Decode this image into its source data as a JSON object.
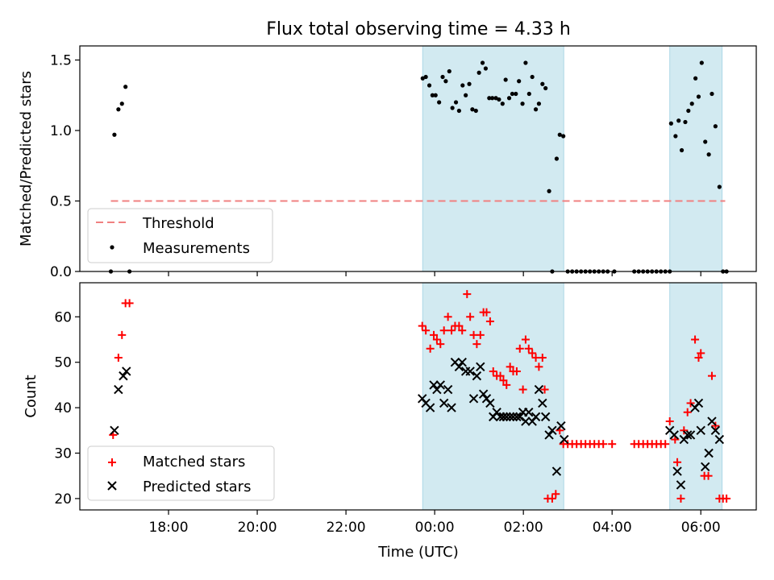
{
  "title": "Flux total observing time = 4.33 h",
  "colors": {
    "threshold": "#f08080",
    "measurement": "#000000",
    "matched": "#ff0000",
    "predicted": "#000000",
    "shade": "#add8e6"
  },
  "chart_data": [
    {
      "type": "scatter",
      "title": "Flux total observing time = 4.33 h",
      "xlabel": "",
      "ylabel": "Matched/Predicted stars",
      "xlim_hours": [
        16.0,
        31.25
      ],
      "ylim": [
        0,
        1.6
      ],
      "yticks": [
        0.0,
        0.5,
        1.0,
        1.5
      ],
      "ytick_labels": [
        "0.0",
        "0.5",
        "1.0",
        "1.5"
      ],
      "xticks_hours": [
        18,
        20,
        22,
        24,
        26,
        28,
        30
      ],
      "shaded_intervals_hours": [
        [
          23.73,
          26.91
        ],
        [
          29.3,
          30.48
        ]
      ],
      "legend_position": "lower-left",
      "legend": [
        "Threshold",
        "Measurements"
      ],
      "threshold": {
        "name": "Threshold",
        "value": 0.5,
        "x_range_hours": [
          16.7,
          30.55
        ],
        "style": "dashed"
      },
      "series": [
        {
          "name": "Measurements",
          "points": [
            [
              16.7,
              0.0
            ],
            [
              16.78,
              0.97
            ],
            [
              16.87,
              1.15
            ],
            [
              16.95,
              1.19
            ],
            [
              17.03,
              1.31
            ],
            [
              17.12,
              0.0
            ],
            [
              23.73,
              1.37
            ],
            [
              23.8,
              1.38
            ],
            [
              23.88,
              1.32
            ],
            [
              23.95,
              1.25
            ],
            [
              24.02,
              1.25
            ],
            [
              24.1,
              1.2
            ],
            [
              24.18,
              1.38
            ],
            [
              24.25,
              1.35
            ],
            [
              24.33,
              1.42
            ],
            [
              24.4,
              1.16
            ],
            [
              24.48,
              1.2
            ],
            [
              24.55,
              1.14
            ],
            [
              24.63,
              1.32
            ],
            [
              24.7,
              1.25
            ],
            [
              24.78,
              1.33
            ],
            [
              24.85,
              1.15
            ],
            [
              24.93,
              1.14
            ],
            [
              25.0,
              1.41
            ],
            [
              25.08,
              1.48
            ],
            [
              25.15,
              1.44
            ],
            [
              25.23,
              1.23
            ],
            [
              25.3,
              1.23
            ],
            [
              25.38,
              1.23
            ],
            [
              25.45,
              1.22
            ],
            [
              25.53,
              1.19
            ],
            [
              25.6,
              1.36
            ],
            [
              25.68,
              1.23
            ],
            [
              25.75,
              1.26
            ],
            [
              25.83,
              1.26
            ],
            [
              25.9,
              1.35
            ],
            [
              25.98,
              1.19
            ],
            [
              26.05,
              1.48
            ],
            [
              26.13,
              1.26
            ],
            [
              26.2,
              1.38
            ],
            [
              26.28,
              1.15
            ],
            [
              26.35,
              1.19
            ],
            [
              26.43,
              1.33
            ],
            [
              26.5,
              1.3
            ],
            [
              26.58,
              0.57
            ],
            [
              26.65,
              0.0
            ],
            [
              26.75,
              0.8
            ],
            [
              26.82,
              0.97
            ],
            [
              26.9,
              0.96
            ],
            [
              27.0,
              0.0
            ],
            [
              27.1,
              0.0
            ],
            [
              27.2,
              0.0
            ],
            [
              27.3,
              0.0
            ],
            [
              27.4,
              0.0
            ],
            [
              27.5,
              0.0
            ],
            [
              27.6,
              0.0
            ],
            [
              27.7,
              0.0
            ],
            [
              27.8,
              0.0
            ],
            [
              27.9,
              0.0
            ],
            [
              28.05,
              0.0
            ],
            [
              28.5,
              0.0
            ],
            [
              28.6,
              0.0
            ],
            [
              28.7,
              0.0
            ],
            [
              28.8,
              0.0
            ],
            [
              28.9,
              0.0
            ],
            [
              29.0,
              0.0
            ],
            [
              29.1,
              0.0
            ],
            [
              29.2,
              0.0
            ],
            [
              29.3,
              0.0
            ],
            [
              29.33,
              1.05
            ],
            [
              29.43,
              0.96
            ],
            [
              29.5,
              1.07
            ],
            [
              29.57,
              0.86
            ],
            [
              29.65,
              1.06
            ],
            [
              29.72,
              1.14
            ],
            [
              29.8,
              1.19
            ],
            [
              29.88,
              1.37
            ],
            [
              29.95,
              1.24
            ],
            [
              30.02,
              1.48
            ],
            [
              30.1,
              0.92
            ],
            [
              30.18,
              0.83
            ],
            [
              30.25,
              1.26
            ],
            [
              30.33,
              1.03
            ],
            [
              30.42,
              0.6
            ],
            [
              30.5,
              0.0
            ],
            [
              30.58,
              0.0
            ]
          ]
        }
      ]
    },
    {
      "type": "scatter",
      "title": "",
      "xlabel": "Time (UTC)",
      "ylabel": "Count",
      "xlim_hours": [
        16.0,
        31.25
      ],
      "ylim": [
        17.5,
        67.5
      ],
      "yticks": [
        20,
        30,
        40,
        50,
        60
      ],
      "ytick_labels": [
        "20",
        "30",
        "40",
        "50",
        "60"
      ],
      "xticks_hours": [
        18,
        20,
        22,
        24,
        26,
        28,
        30
      ],
      "xtick_labels": [
        "18:00",
        "20:00",
        "22:00",
        "00:00",
        "02:00",
        "04:00",
        "06:00"
      ],
      "shaded_intervals_hours": [
        [
          23.73,
          26.91
        ],
        [
          29.3,
          30.48
        ]
      ],
      "legend_position": "lower-left",
      "legend": [
        "Matched stars",
        "Predicted stars"
      ],
      "series": [
        {
          "name": "Matched stars",
          "marker": "plus",
          "points": [
            [
              16.75,
              34
            ],
            [
              16.87,
              51
            ],
            [
              16.95,
              56
            ],
            [
              17.03,
              63
            ],
            [
              17.12,
              63
            ],
            [
              23.72,
              58
            ],
            [
              23.8,
              57
            ],
            [
              23.9,
              53
            ],
            [
              23.98,
              56
            ],
            [
              24.05,
              55
            ],
            [
              24.13,
              54
            ],
            [
              24.21,
              57
            ],
            [
              24.3,
              60
            ],
            [
              24.38,
              57
            ],
            [
              24.46,
              58
            ],
            [
              24.55,
              58
            ],
            [
              24.62,
              57
            ],
            [
              24.73,
              65
            ],
            [
              24.8,
              60
            ],
            [
              24.88,
              56
            ],
            [
              24.95,
              54
            ],
            [
              25.03,
              56
            ],
            [
              25.1,
              61
            ],
            [
              25.17,
              61
            ],
            [
              25.25,
              59
            ],
            [
              25.32,
              48
            ],
            [
              25.4,
              47
            ],
            [
              25.48,
              47
            ],
            [
              25.55,
              46
            ],
            [
              25.62,
              45
            ],
            [
              25.7,
              49
            ],
            [
              25.77,
              48
            ],
            [
              25.85,
              48
            ],
            [
              25.92,
              53
            ],
            [
              25.99,
              44
            ],
            [
              26.05,
              55
            ],
            [
              26.12,
              53
            ],
            [
              26.2,
              52
            ],
            [
              26.28,
              51
            ],
            [
              26.35,
              49
            ],
            [
              26.43,
              51
            ],
            [
              26.48,
              44
            ],
            [
              26.55,
              20
            ],
            [
              26.65,
              20
            ],
            [
              26.73,
              21
            ],
            [
              26.82,
              35
            ],
            [
              26.9,
              32
            ],
            [
              27.0,
              32
            ],
            [
              27.1,
              32
            ],
            [
              27.2,
              32
            ],
            [
              27.3,
              32
            ],
            [
              27.4,
              32
            ],
            [
              27.5,
              32
            ],
            [
              27.6,
              32
            ],
            [
              27.7,
              32
            ],
            [
              27.8,
              32
            ],
            [
              28.0,
              32
            ],
            [
              28.5,
              32
            ],
            [
              28.6,
              32
            ],
            [
              28.7,
              32
            ],
            [
              28.8,
              32
            ],
            [
              28.9,
              32
            ],
            [
              29.0,
              32
            ],
            [
              29.1,
              32
            ],
            [
              29.2,
              32
            ],
            [
              29.3,
              37
            ],
            [
              29.42,
              33
            ],
            [
              29.47,
              28
            ],
            [
              29.55,
              20
            ],
            [
              29.62,
              35
            ],
            [
              29.7,
              39
            ],
            [
              29.77,
              41
            ],
            [
              29.87,
              55
            ],
            [
              29.95,
              51
            ],
            [
              30.0,
              52
            ],
            [
              30.08,
              25
            ],
            [
              30.17,
              25
            ],
            [
              30.25,
              47
            ],
            [
              30.33,
              36
            ],
            [
              30.42,
              20
            ],
            [
              30.5,
              20
            ],
            [
              30.58,
              20
            ]
          ]
        },
        {
          "name": "Predicted stars",
          "marker": "x",
          "points": [
            [
              16.78,
              35
            ],
            [
              16.87,
              44
            ],
            [
              16.98,
              47
            ],
            [
              17.05,
              48
            ],
            [
              23.72,
              42
            ],
            [
              23.8,
              41
            ],
            [
              23.9,
              40
            ],
            [
              23.98,
              45
            ],
            [
              24.05,
              44
            ],
            [
              24.13,
              45
            ],
            [
              24.21,
              41
            ],
            [
              24.3,
              44
            ],
            [
              24.38,
              40
            ],
            [
              24.46,
              50
            ],
            [
              24.55,
              49
            ],
            [
              24.62,
              50
            ],
            [
              24.7,
              48
            ],
            [
              24.8,
              48
            ],
            [
              24.88,
              42
            ],
            [
              24.95,
              47
            ],
            [
              25.03,
              49
            ],
            [
              25.1,
              43
            ],
            [
              25.17,
              42
            ],
            [
              25.25,
              41
            ],
            [
              25.32,
              38
            ],
            [
              25.4,
              39
            ],
            [
              25.48,
              38
            ],
            [
              25.55,
              38
            ],
            [
              25.62,
              38
            ],
            [
              25.7,
              38
            ],
            [
              25.77,
              38
            ],
            [
              25.85,
              38
            ],
            [
              25.92,
              38
            ],
            [
              25.99,
              39
            ],
            [
              26.05,
              37
            ],
            [
              26.12,
              39
            ],
            [
              26.2,
              37
            ],
            [
              26.28,
              38
            ],
            [
              26.35,
              44
            ],
            [
              26.43,
              41
            ],
            [
              26.5,
              38
            ],
            [
              26.58,
              34
            ],
            [
              26.65,
              35
            ],
            [
              26.75,
              26
            ],
            [
              26.85,
              36
            ],
            [
              26.92,
              33
            ],
            [
              29.3,
              35
            ],
            [
              29.4,
              34
            ],
            [
              29.47,
              26
            ],
            [
              29.55,
              23
            ],
            [
              29.62,
              33
            ],
            [
              29.7,
              34
            ],
            [
              29.77,
              34
            ],
            [
              29.87,
              40
            ],
            [
              29.95,
              41
            ],
            [
              30.0,
              35
            ],
            [
              30.1,
              27
            ],
            [
              30.18,
              30
            ],
            [
              30.25,
              37
            ],
            [
              30.33,
              35
            ],
            [
              30.42,
              33
            ]
          ]
        }
      ]
    }
  ]
}
